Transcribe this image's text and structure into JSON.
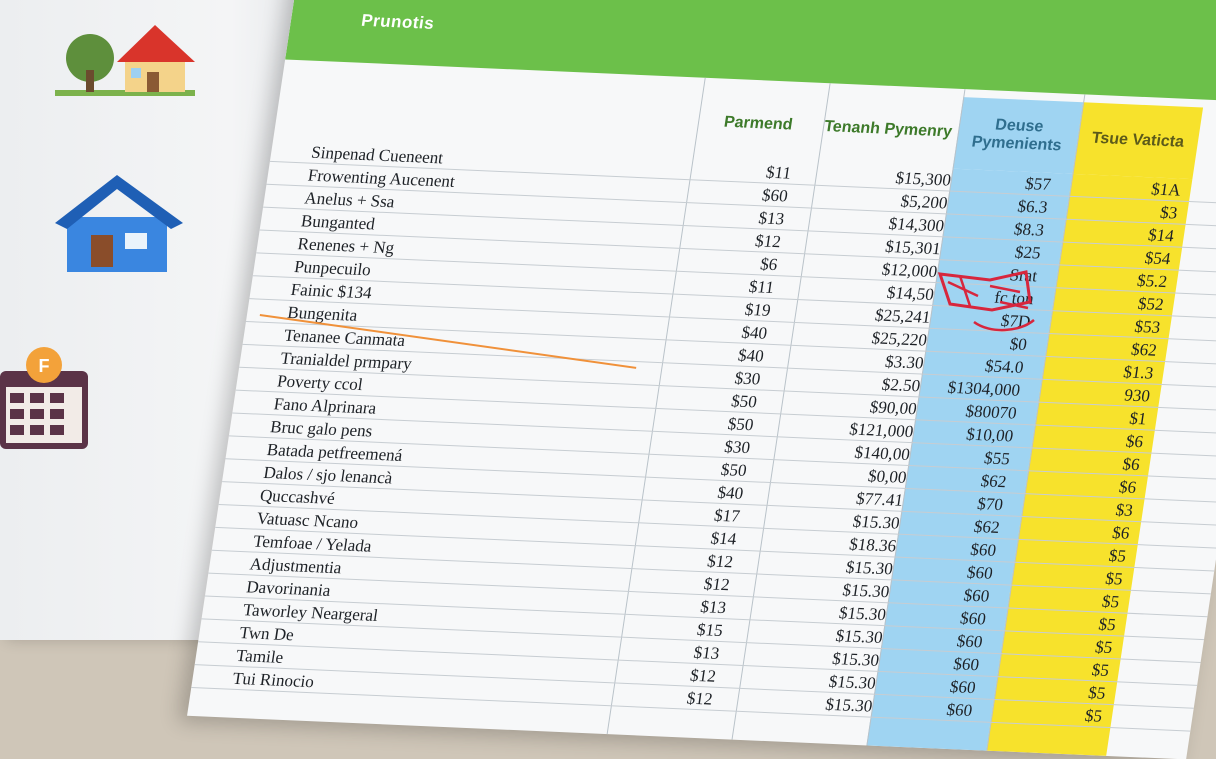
{
  "sheet": {
    "title": "Prunotis"
  },
  "columns": {
    "payment": "Parmend",
    "tenant_payment": "Tenanh Pymenry",
    "blue": "Deuse Pymenients",
    "yellow": "Tsue Vaticta"
  },
  "colors": {
    "green": "#6cc04a",
    "blue": "#9fd4f2",
    "yellow": "#f7e22c",
    "orange": "#f0913a",
    "red": "#d7263d"
  },
  "icons": [
    "house-tree-icon",
    "house-blue-icon",
    "calendar-icon"
  ],
  "rows": [
    {
      "label": "Sinpenad Cueneent",
      "pay": "$11",
      "tenant": "$15,300",
      "blue": "$57",
      "yellow": "$1A"
    },
    {
      "label": "Frowenting Aucenent",
      "pay": "$60",
      "tenant": "$5,200",
      "blue": "$6.3",
      "yellow": "$3"
    },
    {
      "label": "Anelus + Ssa",
      "pay": "$13",
      "tenant": "$14,300",
      "blue": "$8.3",
      "yellow": "$14"
    },
    {
      "label": "Bunganted",
      "pay": "$12",
      "tenant": "$15,301",
      "blue": "$25",
      "yellow": "$54"
    },
    {
      "label": "Renenes + Ng",
      "pay": "$6",
      "tenant": "$12,000",
      "blue": "Srat",
      "yellow": "$5.2"
    },
    {
      "label": "Punpecuilo",
      "pay": "$11",
      "tenant": "$14,50",
      "blue": "fc ton",
      "yellow": "$52"
    },
    {
      "label": "Fainic $134",
      "pay": "$19",
      "tenant": "$25,241",
      "blue": "$7D",
      "yellow": "$53"
    },
    {
      "label": "Bungenita",
      "pay": "$40",
      "tenant": "$25,220",
      "blue": "$0",
      "yellow": "$62"
    },
    {
      "label": "Tenanee Canmata",
      "pay": "$40",
      "tenant": "$3.30",
      "blue": "$54.0",
      "yellow": "$1.3"
    },
    {
      "label": "Tranialdel prmpary",
      "pay": "$30",
      "tenant": "$2.50",
      "blue": "$1304,000",
      "yellow": "930"
    },
    {
      "label": "Poverty ccol",
      "pay": "$50",
      "tenant": "$90,00",
      "blue": "$80070",
      "yellow": "$1"
    },
    {
      "label": "Fano Alprinara",
      "pay": "$50",
      "tenant": "$121,000",
      "blue": "$10,00",
      "yellow": "$6"
    },
    {
      "label": "Bruc galo pens",
      "pay": "$30",
      "tenant": "$140,00",
      "blue": "$55",
      "yellow": "$6"
    },
    {
      "label": "Batada petfreemená",
      "pay": "$50",
      "tenant": "$0,00",
      "blue": "$62",
      "yellow": "$6"
    },
    {
      "label": "Dalos / sjo lenancà",
      "pay": "$40",
      "tenant": "$77.41",
      "blue": "$70",
      "yellow": "$3"
    },
    {
      "label": "Quccashvé",
      "pay": "$17",
      "tenant": "$15.30",
      "blue": "$62",
      "yellow": "$6"
    },
    {
      "label": "Vatuasc Ncano",
      "pay": "$14",
      "tenant": "$18.36",
      "blue": "$60",
      "yellow": "$5"
    },
    {
      "label": "Temfoae / Yelada",
      "pay": "$12",
      "tenant": "$15.30",
      "blue": "$60",
      "yellow": "$5"
    },
    {
      "label": "Adjustmentia",
      "pay": "$12",
      "tenant": "$15.30",
      "blue": "$60",
      "yellow": "$5"
    },
    {
      "label": "Davorinania",
      "pay": "$13",
      "tenant": "$15.30",
      "blue": "$60",
      "yellow": "$5"
    },
    {
      "label": "Taworley Neargeral",
      "pay": "$15",
      "tenant": "$15.30",
      "blue": "$60",
      "yellow": "$5"
    },
    {
      "label": "Twn De",
      "pay": "$13",
      "tenant": "$15.30",
      "blue": "$60",
      "yellow": "$5"
    },
    {
      "label": "Tamile",
      "pay": "$12",
      "tenant": "$15.30",
      "blue": "$60",
      "yellow": "$5"
    },
    {
      "label": "Tui Rinocio",
      "pay": "$12",
      "tenant": "$15.30",
      "blue": "$60",
      "yellow": "$5"
    }
  ]
}
